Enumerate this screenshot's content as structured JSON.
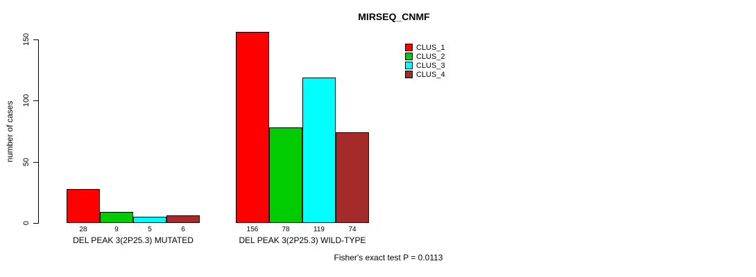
{
  "chart_data": {
    "type": "bar",
    "title": "MIRSEQ_CNMF",
    "ylabel": "number of cases",
    "xlabel": "",
    "categories": [
      "DEL PEAK 3(2P25.3) MUTATED",
      "DEL PEAK 3(2P25.3) WILD-TYPE"
    ],
    "series": [
      {
        "name": "CLUS_1",
        "color": "#FF0000",
        "values": [
          28,
          156
        ]
      },
      {
        "name": "CLUS_2",
        "color": "#00CC00",
        "values": [
          9,
          78
        ]
      },
      {
        "name": "CLUS_3",
        "color": "#00FFFF",
        "values": [
          5,
          119
        ]
      },
      {
        "name": "CLUS_4",
        "color": "#A52A2A",
        "values": [
          6,
          74
        ]
      }
    ],
    "yticks": [
      0,
      50,
      100,
      150
    ],
    "ylim": [
      0,
      160
    ],
    "grid": false,
    "legend_position": "top-right",
    "annotation": "Fisher's exact test P = 0.0113"
  }
}
